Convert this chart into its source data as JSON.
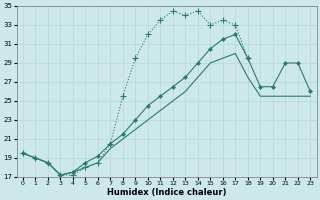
{
  "xlabel": "Humidex (Indice chaleur)",
  "bg_color": "#cce8ea",
  "grid_color": "#b8d8da",
  "line_color": "#2a7a70",
  "xlim": [
    -0.5,
    23.5
  ],
  "ylim": [
    17,
    35
  ],
  "yticks": [
    17,
    19,
    21,
    23,
    25,
    27,
    29,
    31,
    33,
    35
  ],
  "xticks": [
    0,
    1,
    2,
    3,
    4,
    5,
    6,
    7,
    8,
    9,
    10,
    11,
    12,
    13,
    14,
    15,
    16,
    17,
    18,
    19,
    20,
    21,
    22,
    23
  ],
  "line1_x": [
    0,
    1,
    2,
    3,
    4,
    5,
    6,
    7,
    8,
    9,
    10,
    11,
    12,
    13,
    14,
    15,
    16,
    17,
    18
  ],
  "line1_y": [
    19.5,
    19.0,
    18.5,
    17.2,
    17.2,
    18.0,
    18.5,
    20.5,
    25.5,
    29.5,
    32.0,
    33.5,
    34.5,
    34.0,
    34.5,
    33.0,
    33.5,
    33.0,
    29.5
  ],
  "line2_x": [
    0,
    1,
    2,
    3,
    4,
    5,
    6,
    7,
    8,
    9,
    10,
    11,
    12,
    13,
    14,
    15,
    16,
    17,
    18,
    19,
    20,
    21,
    22,
    23
  ],
  "line2_y": [
    19.5,
    19.0,
    18.5,
    17.2,
    17.5,
    18.5,
    19.2,
    20.5,
    21.5,
    23.0,
    24.5,
    25.5,
    26.5,
    27.5,
    29.0,
    30.5,
    31.5,
    32.0,
    29.5,
    26.5,
    26.5,
    29.0,
    29.0,
    26.0
  ],
  "line3_x": [
    0,
    1,
    2,
    3,
    4,
    5,
    6,
    7,
    8,
    9,
    10,
    11,
    12,
    13,
    14,
    15,
    16,
    17,
    18,
    19,
    20,
    21,
    22,
    23
  ],
  "line3_y": [
    19.5,
    19.0,
    18.5,
    17.2,
    17.5,
    18.0,
    18.5,
    20.0,
    21.0,
    22.0,
    23.0,
    24.0,
    25.0,
    26.0,
    27.5,
    29.0,
    29.5,
    30.0,
    27.5,
    25.5,
    25.5,
    25.5,
    25.5,
    25.5
  ]
}
